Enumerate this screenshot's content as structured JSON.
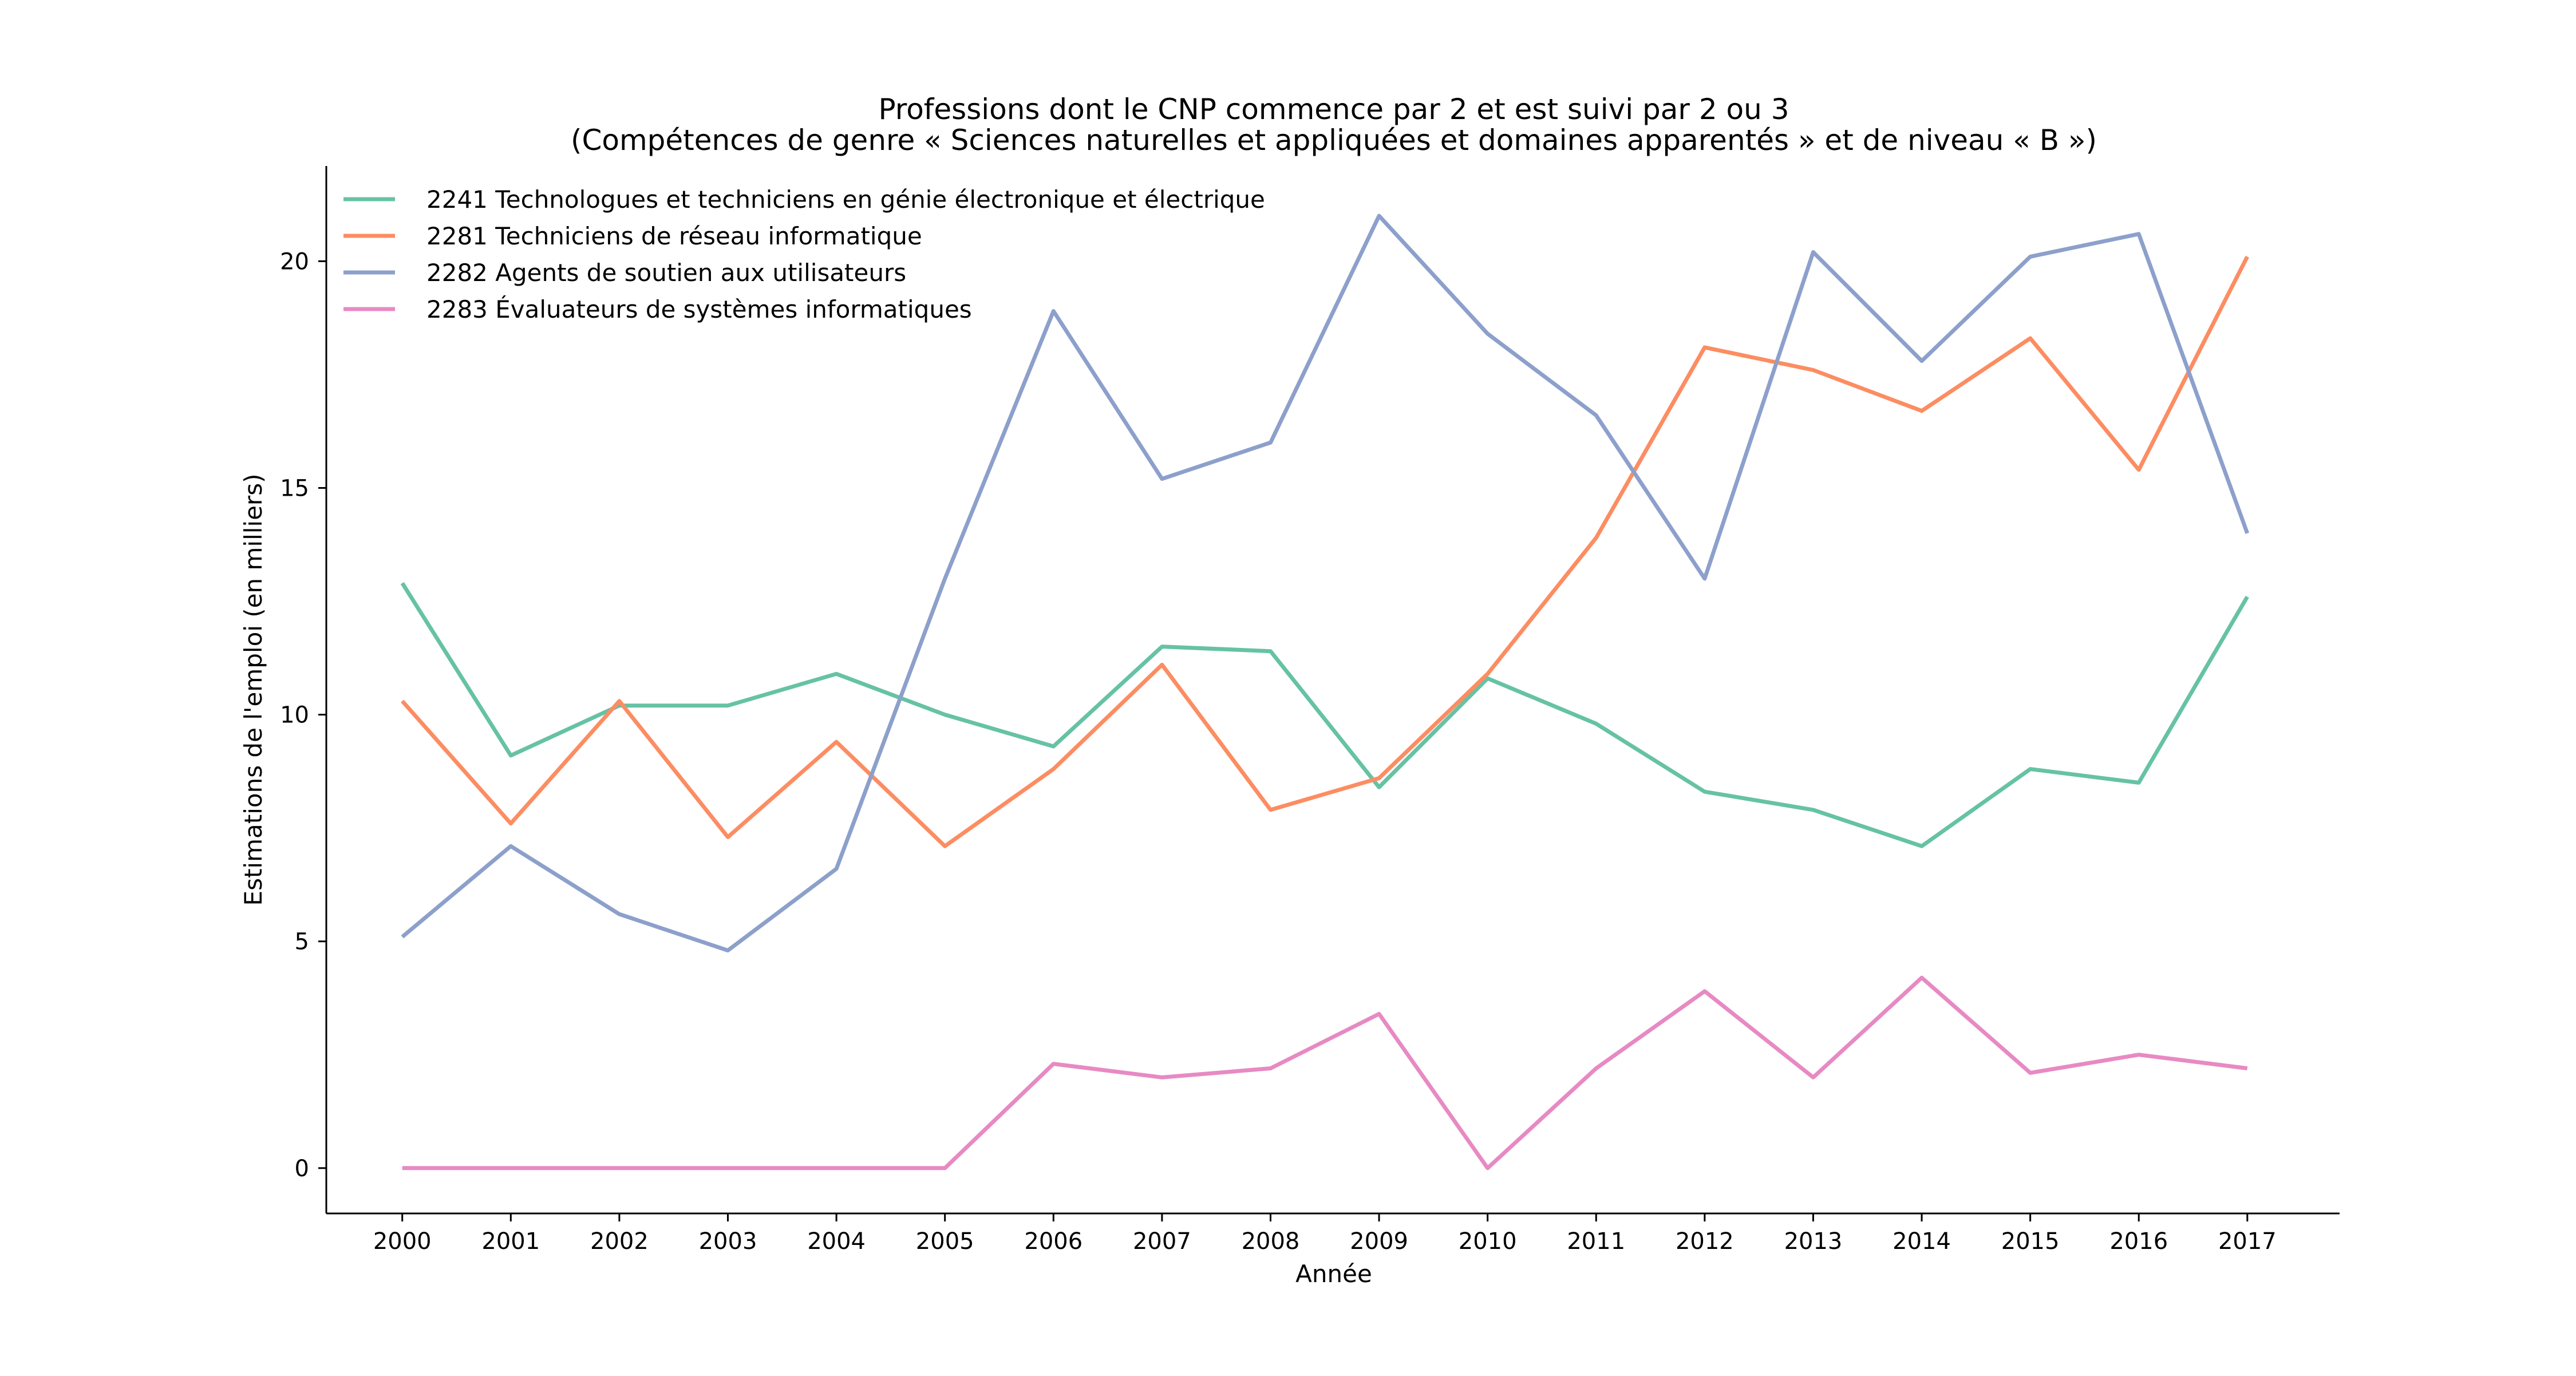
{
  "chart_data": {
    "type": "line",
    "title_lines": [
      "Professions dont le CNP commence par 2 et est suivi par 2 ou 3",
      "(Compétences de genre « Sciences naturelles et appliquées et domaines apparentés » et de niveau « B »)"
    ],
    "xlabel": "Année",
    "ylabel": "Estimations de l'emploi (en milliers)",
    "x": [
      "2000",
      "2001",
      "2002",
      "2003",
      "2004",
      "2005",
      "2006",
      "2007",
      "2008",
      "2009",
      "2010",
      "2011",
      "2012",
      "2013",
      "2014",
      "2015",
      "2016",
      "2017"
    ],
    "xlim": [
      1999.3,
      2017.85
    ],
    "ylim": [
      -1.0,
      22.1
    ],
    "yticks": [
      0,
      5,
      10,
      15,
      20
    ],
    "grid": false,
    "legend_position": "top-left",
    "series": [
      {
        "name": "2241 Technologues et techniciens en génie électronique et électrique",
        "color": "#66c2a5",
        "values": [
          12.9,
          9.1,
          10.2,
          10.2,
          10.9,
          10.0,
          9.3,
          11.5,
          11.4,
          8.4,
          10.8,
          9.8,
          8.3,
          7.9,
          7.1,
          8.8,
          8.5,
          12.6
        ]
      },
      {
        "name": "2281 Techniciens de réseau informatique",
        "color": "#fc8d62",
        "values": [
          10.3,
          7.6,
          10.3,
          7.3,
          9.4,
          7.1,
          8.8,
          11.1,
          7.9,
          8.6,
          10.9,
          13.9,
          18.1,
          17.6,
          16.7,
          18.3,
          15.4,
          20.1
        ]
      },
      {
        "name": "2282 Agents de soutien aux utilisateurs",
        "color": "#8da0cb",
        "values": [
          5.1,
          7.1,
          5.6,
          4.8,
          6.6,
          13.0,
          18.9,
          15.2,
          16.0,
          21.0,
          18.4,
          16.6,
          13.0,
          20.2,
          17.8,
          20.1,
          20.6,
          14.0
        ]
      },
      {
        "name": "2283 Évaluateurs de systèmes informatiques",
        "color": "#e78ac3",
        "values": [
          0.0,
          0.0,
          0.0,
          0.0,
          0.0,
          0.0,
          2.3,
          2.0,
          2.2,
          3.4,
          0.0,
          2.2,
          3.9,
          2.0,
          4.2,
          2.1,
          2.5,
          2.2
        ]
      }
    ]
  }
}
